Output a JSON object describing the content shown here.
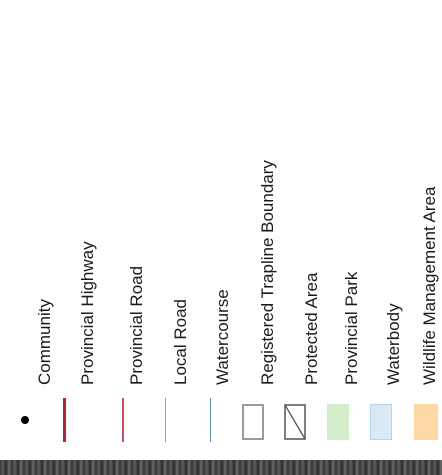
{
  "legend": {
    "items": [
      {
        "label": "Community",
        "symbol": "dot",
        "color": "#000000"
      },
      {
        "label": "Provincial Highway",
        "symbol": "line",
        "color": "#b0243c",
        "weight": "heavy"
      },
      {
        "label": "Provincial Road",
        "symbol": "line",
        "color": "#c8505f",
        "weight": "medium"
      },
      {
        "label": "Local Road",
        "symbol": "line",
        "color": "#d98a94",
        "weight": "thin"
      },
      {
        "label": "Watercourse",
        "symbol": "line",
        "color": "#5f9aa1",
        "weight": "thin"
      },
      {
        "label": "Registered Trapline Boundary",
        "symbol": "box",
        "fill": "#ffffff",
        "stroke": "#9a9a9a"
      },
      {
        "label": "Protected Area",
        "symbol": "hatched-box",
        "fill": "#ffffff",
        "stroke": "#555555"
      },
      {
        "label": "Provincial Park",
        "symbol": "box",
        "fill": "#d4ecc9",
        "stroke": "#d4ecc9"
      },
      {
        "label": "Waterbody",
        "symbol": "box",
        "fill": "#dbe9f7",
        "stroke": "#b8d2ea"
      },
      {
        "label": "Wildlife Management Area",
        "symbol": "box",
        "fill": "#fcd9a4",
        "stroke": "#fcd9a4"
      }
    ]
  }
}
